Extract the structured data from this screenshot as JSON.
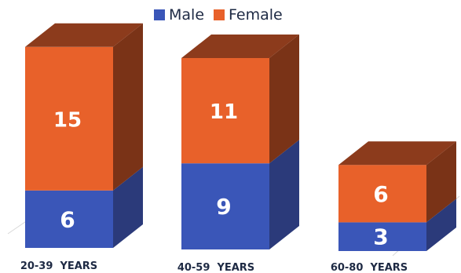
{
  "chart_data": {
    "type": "bar",
    "stacked": true,
    "three_d": true,
    "categories": [
      "20-39  YEARS",
      "40-59  YEARS",
      "60-80  YEARS"
    ],
    "series": [
      {
        "name": "Male",
        "values": [
          6,
          9,
          3
        ],
        "color": "#3a56b8",
        "top_color": "#2a3f90",
        "side_color": "#2b3a7a"
      },
      {
        "name": "Female",
        "values": [
          15,
          11,
          6
        ],
        "color": "#e8612a",
        "top_color": "#8c3b1c",
        "side_color": "#7a3317"
      }
    ],
    "legend_position": "top-center",
    "grid": false,
    "value_labels": true
  }
}
